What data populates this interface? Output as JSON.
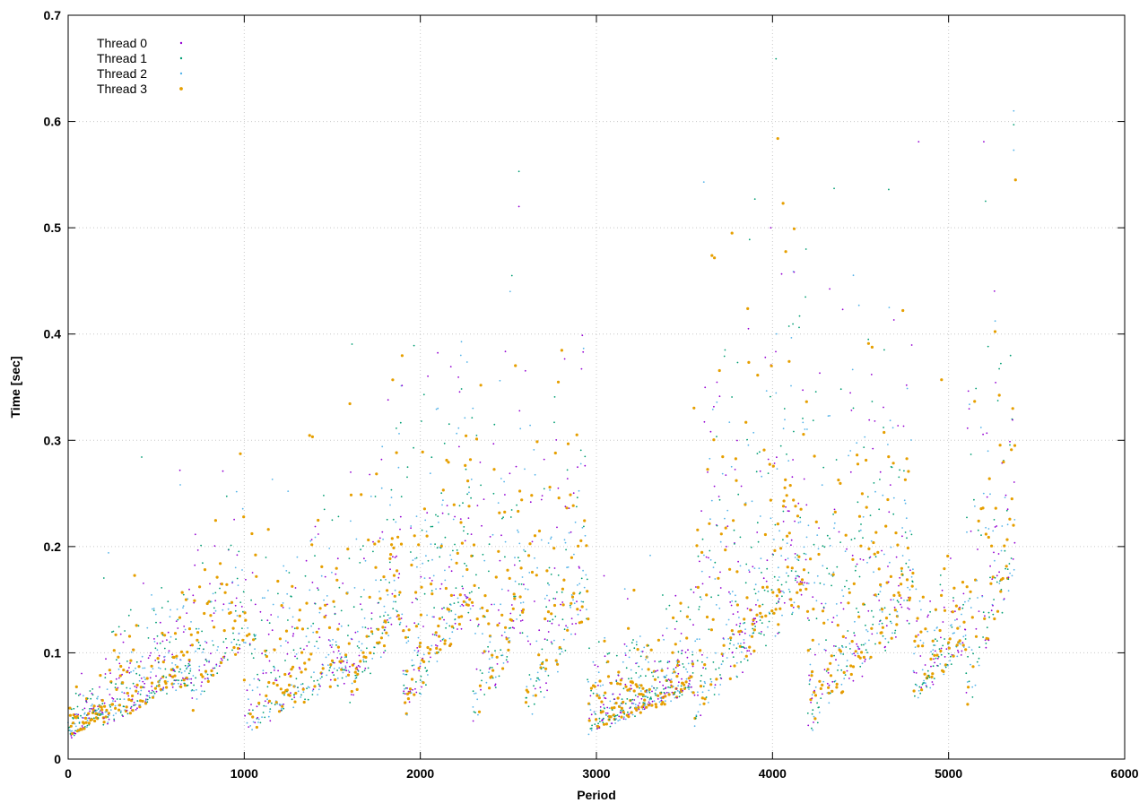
{
  "chart_data": {
    "type": "scatter",
    "title": "",
    "xlabel": "Period",
    "ylabel": "Time [sec]",
    "xlim": [
      0,
      6000
    ],
    "ylim": [
      0,
      0.7
    ],
    "x_ticks": [
      0,
      1000,
      2000,
      3000,
      4000,
      5000,
      6000
    ],
    "y_ticks": [
      0,
      0.1,
      0.2,
      0.3,
      0.4,
      0.5,
      0.6,
      0.7
    ],
    "x_tick_labels": [
      "0",
      "1000",
      "2000",
      "3000",
      "4000",
      "5000",
      "6000"
    ],
    "y_tick_labels": [
      "0",
      "0.1",
      "0.2",
      "0.3",
      "0.4",
      "0.5",
      "0.6",
      "0.7"
    ],
    "grid": true,
    "legend_position": "top-left",
    "series": [
      {
        "name": "Thread 0",
        "color": "#9400d3",
        "marker": "dot-small"
      },
      {
        "name": "Thread 1",
        "color": "#009e73",
        "marker": "dot-small"
      },
      {
        "name": "Thread 2",
        "color": "#56b4e9",
        "marker": "dot-small"
      },
      {
        "name": "Thread 3",
        "color": "#e69f00",
        "marker": "dot-medium"
      }
    ],
    "segments": [
      {
        "x": [
          0,
          200
        ],
        "base": [
          0.02,
          0.045
        ],
        "spread": 0.03,
        "max": 0.09,
        "density": 1.0
      },
      {
        "x": [
          200,
          700
        ],
        "base": [
          0.04,
          0.08
        ],
        "spread": 0.08,
        "max": 0.29,
        "density": 0.9
      },
      {
        "x": [
          700,
          1000
        ],
        "base": [
          0.06,
          0.12
        ],
        "spread": 0.14,
        "max": 0.35,
        "density": 0.7
      },
      {
        "x": [
          1000,
          1600
        ],
        "base": [
          0.04,
          0.09
        ],
        "spread": 0.14,
        "max": 0.32,
        "density": 0.8
      },
      {
        "x": [
          1600,
          1900
        ],
        "base": [
          0.07,
          0.15
        ],
        "spread": 0.18,
        "max": 0.4,
        "density": 0.8
      },
      {
        "x": [
          1900,
          2300
        ],
        "base": [
          0.06,
          0.16
        ],
        "spread": 0.22,
        "max": 0.41,
        "density": 0.9
      },
      {
        "x": [
          2300,
          2600
        ],
        "base": [
          0.05,
          0.15
        ],
        "spread": 0.22,
        "max": 0.45,
        "density": 0.8
      },
      {
        "x": [
          2600,
          2950
        ],
        "base": [
          0.05,
          0.16
        ],
        "spread": 0.22,
        "max": 0.42,
        "density": 0.8
      },
      {
        "x": [
          2950,
          3550
        ],
        "base": [
          0.03,
          0.07
        ],
        "spread": 0.07,
        "max": 0.2,
        "density": 1.0
      },
      {
        "x": [
          3550,
          4200
        ],
        "base": [
          0.06,
          0.18
        ],
        "spread": 0.26,
        "max": 0.5,
        "density": 0.9
      },
      {
        "x": [
          4200,
          4800
        ],
        "base": [
          0.05,
          0.16
        ],
        "spread": 0.25,
        "max": 0.48,
        "density": 0.9
      },
      {
        "x": [
          4800,
          5100
        ],
        "base": [
          0.06,
          0.11
        ],
        "spread": 0.08,
        "max": 0.2,
        "density": 0.8
      },
      {
        "x": [
          5100,
          5380
        ],
        "base": [
          0.07,
          0.2
        ],
        "spread": 0.24,
        "max": 0.5,
        "density": 0.8
      }
    ],
    "outliers": [
      {
        "x": 2560,
        "y": 0.553,
        "series": 1
      },
      {
        "x": 2560,
        "y": 0.52,
        "series": 0
      },
      {
        "x": 4020,
        "y": 0.659,
        "series": 1
      },
      {
        "x": 4030,
        "y": 0.584,
        "series": 3
      },
      {
        "x": 4060,
        "y": 0.523,
        "series": 3
      },
      {
        "x": 3610,
        "y": 0.543,
        "series": 2
      },
      {
        "x": 4350,
        "y": 0.537,
        "series": 1
      },
      {
        "x": 4660,
        "y": 0.536,
        "series": 1
      },
      {
        "x": 4830,
        "y": 0.581,
        "series": 0
      },
      {
        "x": 5200,
        "y": 0.581,
        "series": 0
      },
      {
        "x": 5210,
        "y": 0.525,
        "series": 1
      },
      {
        "x": 5370,
        "y": 0.61,
        "series": 2
      },
      {
        "x": 5370,
        "y": 0.597,
        "series": 1
      },
      {
        "x": 5380,
        "y": 0.545,
        "series": 3
      },
      {
        "x": 5370,
        "y": 0.573,
        "series": 2
      },
      {
        "x": 3990,
        "y": 0.5,
        "series": 0
      },
      {
        "x": 3900,
        "y": 0.527,
        "series": 1
      },
      {
        "x": 2520,
        "y": 0.455,
        "series": 1
      },
      {
        "x": 2510,
        "y": 0.44,
        "series": 2
      },
      {
        "x": 3770,
        "y": 0.495,
        "series": 3
      },
      {
        "x": 4960,
        "y": 0.357,
        "series": 3
      }
    ]
  }
}
